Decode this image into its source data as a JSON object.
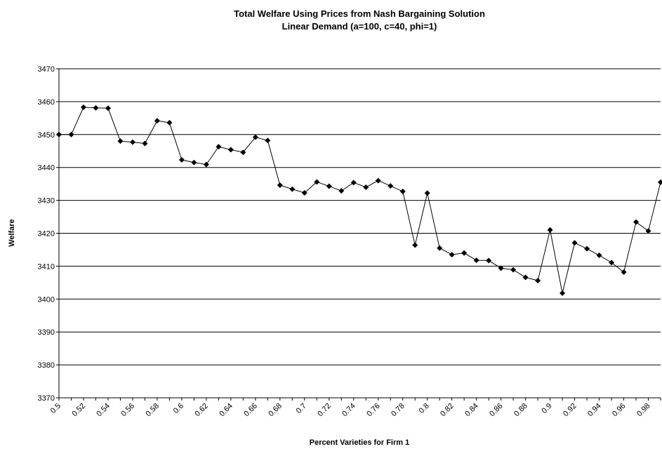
{
  "chart_data": {
    "type": "line",
    "title": "Total Welfare Using Prices from Nash Bargaining Solution",
    "subtitle": "Linear Demand (a=100, c=40, phi=1)",
    "x_label": "Percent Varieties for Firm 1",
    "y_label": "Welfare",
    "categories": [
      "0.5",
      null,
      "0.52",
      null,
      "0.54",
      null,
      "0.56",
      null,
      "0.58",
      null,
      "0.6",
      null,
      "0.62",
      null,
      "0.64",
      null,
      "0.66",
      null,
      "0.68",
      null,
      "0.7",
      null,
      "0.72",
      null,
      "0.74",
      null,
      "0.76",
      null,
      "0.78",
      null,
      "0.8",
      null,
      "0.82",
      null,
      "0.84",
      null,
      "0.86",
      null,
      "0.88",
      null,
      "0.9",
      null,
      "0.92",
      null,
      "0.94",
      null,
      "0.96",
      null,
      "0.98",
      null
    ],
    "series": [
      {
        "name": "Welfare",
        "color": "#000000",
        "values": [
          3450,
          3450,
          3458.3,
          3458.1,
          3458,
          3448,
          3447.7,
          3447.3,
          3454.2,
          3453.6,
          3442.3,
          3441.5,
          3440.9,
          3446.3,
          3445.4,
          3444.6,
          3449.2,
          3448.2,
          3434.6,
          3433.4,
          3432.3,
          3435.6,
          3434.3,
          3432.9,
          3435.4,
          3434,
          3436,
          3434.4,
          3432.7,
          3416.4,
          3432.2,
          3415.5,
          3413.5,
          3414,
          3411.8,
          3411.7,
          3409.4,
          3408.9,
          3406.6,
          3405.6,
          3421,
          3401.8,
          3417.1,
          3415.3,
          3413.3,
          3411.1,
          3408.2,
          3423.4,
          3420.7,
          3435.5
        ]
      }
    ],
    "ylim": [
      3370,
      3470
    ],
    "yticks": [
      3370,
      3380,
      3390,
      3400,
      3410,
      3420,
      3430,
      3440,
      3450,
      3460,
      3470
    ],
    "grid": true
  }
}
